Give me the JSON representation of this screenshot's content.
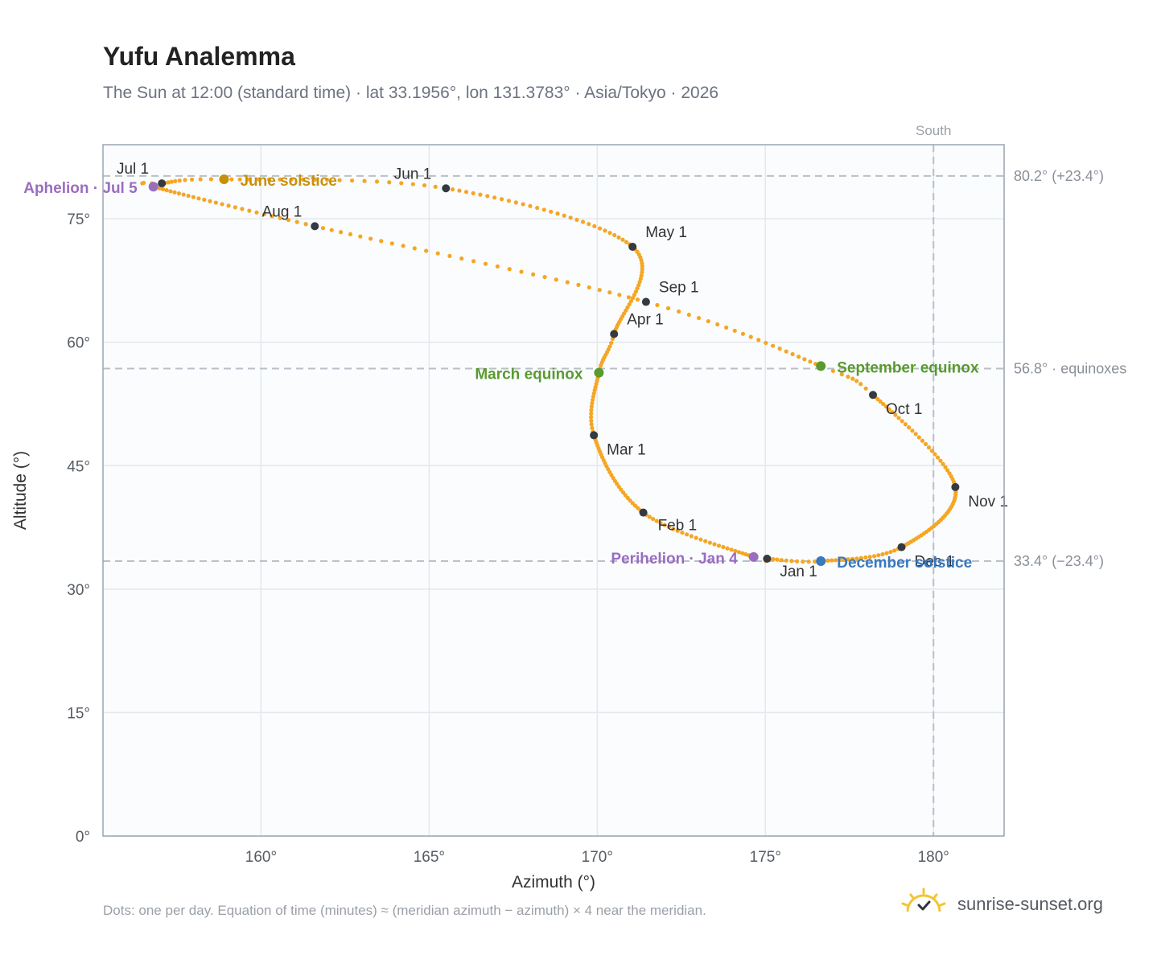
{
  "title": "Yufu Analemma",
  "subtitle": "The Sun at 12:00 (standard time) · lat 33.1956°, lon 131.3783° · Asia/Tokyo · 2026",
  "footnote": "Dots: one per day. Equation of time (minutes) ≈ (meridian azimuth − azimuth) × 4 near the meridian.",
  "brand": "sunrise-sunset.org",
  "colors": {
    "curve": "#f5a623",
    "month_dot": "#343a40",
    "solstice_june": "#c8900a",
    "equinox": "#5a9a2e",
    "solstice_december": "#3a78c0",
    "apsis": "#9a6dbf",
    "ref_line": "#b8c0c8",
    "axis_frame": "#9aa5b4",
    "grid": "#e4e8ec",
    "plot_bg": "#fafcfe"
  },
  "chart_data": {
    "type": "scatter",
    "title": "Yufu Analemma",
    "xlabel": "Azimuth (°)",
    "ylabel": "Altitude (°)",
    "xlim": [
      155.3,
      182.1
    ],
    "ylim": [
      0,
      84
    ],
    "xticks": [
      160,
      165,
      170,
      175,
      180
    ],
    "xtick_labels": [
      "160°",
      "165°",
      "170°",
      "175°",
      "180°"
    ],
    "yticks": [
      0,
      15,
      30,
      45,
      60,
      75
    ],
    "ytick_labels": [
      "0°",
      "15°",
      "30°",
      "45°",
      "60°",
      "75°"
    ],
    "grid": true,
    "south_azimuth": 180,
    "south_label": "South",
    "reference_lines": [
      {
        "altitude": 80.2,
        "label": "80.2° (+23.4°)"
      },
      {
        "altitude": 56.8,
        "label": "56.8° · equinoxes"
      },
      {
        "altitude": 33.4,
        "label": "33.4° (−23.4°)"
      }
    ],
    "anchors": [
      {
        "doy": 1,
        "azimuth": 175.05,
        "altitude": 33.7
      },
      {
        "doy": 4,
        "azimuth": 174.65,
        "altitude": 33.9
      },
      {
        "doy": 32,
        "azimuth": 171.37,
        "altitude": 39.3
      },
      {
        "doy": 60,
        "azimuth": 169.9,
        "altitude": 48.7
      },
      {
        "doy": 79,
        "azimuth": 170.05,
        "altitude": 56.3
      },
      {
        "doy": 91,
        "azimuth": 170.5,
        "altitude": 61.0
      },
      {
        "doy": 121,
        "azimuth": 171.05,
        "altitude": 71.6
      },
      {
        "doy": 152,
        "azimuth": 165.5,
        "altitude": 78.7
      },
      {
        "doy": 172,
        "azimuth": 158.9,
        "altitude": 79.8
      },
      {
        "doy": 182,
        "azimuth": 157.05,
        "altitude": 79.3
      },
      {
        "doy": 186,
        "azimuth": 156.8,
        "altitude": 78.9
      },
      {
        "doy": 213,
        "azimuth": 161.6,
        "altitude": 74.1
      },
      {
        "doy": 244,
        "azimuth": 171.45,
        "altitude": 64.9
      },
      {
        "doy": 266,
        "azimuth": 176.65,
        "altitude": 57.1
      },
      {
        "doy": 274,
        "azimuth": 178.2,
        "altitude": 53.6
      },
      {
        "doy": 305,
        "azimuth": 180.65,
        "altitude": 42.4
      },
      {
        "doy": 335,
        "azimuth": 179.05,
        "altitude": 35.1
      },
      {
        "doy": 355,
        "azimuth": 176.65,
        "altitude": 33.4
      },
      {
        "doy": 366,
        "azimuth": 175.05,
        "altitude": 33.7
      }
    ],
    "month_markers": [
      {
        "label": "Jan 1",
        "azimuth": 175.05,
        "altitude": 33.7,
        "anchor": "start",
        "dx": 16,
        "dy": 22
      },
      {
        "label": "Feb 1",
        "azimuth": 171.37,
        "altitude": 39.3,
        "anchor": "start",
        "dx": 18,
        "dy": 22
      },
      {
        "label": "Mar 1",
        "azimuth": 169.9,
        "altitude": 48.7,
        "anchor": "start",
        "dx": 16,
        "dy": 24
      },
      {
        "label": "Apr 1",
        "azimuth": 170.5,
        "altitude": 61.0,
        "anchor": "start",
        "dx": 16,
        "dy": -12
      },
      {
        "label": "May 1",
        "azimuth": 171.05,
        "altitude": 71.6,
        "anchor": "start",
        "dx": 16,
        "dy": -12
      },
      {
        "label": "Jun 1",
        "azimuth": 165.5,
        "altitude": 78.7,
        "anchor": "end",
        "dx": -18,
        "dy": -12
      },
      {
        "label": "Jul 1",
        "azimuth": 157.05,
        "altitude": 79.3,
        "anchor": "end",
        "dx": -16,
        "dy": -12
      },
      {
        "label": "Aug 1",
        "azimuth": 161.6,
        "altitude": 74.1,
        "anchor": "end",
        "dx": -16,
        "dy": -12
      },
      {
        "label": "Sep 1",
        "azimuth": 171.45,
        "altitude": 64.9,
        "anchor": "start",
        "dx": 16,
        "dy": -12
      },
      {
        "label": "Oct 1",
        "azimuth": 178.2,
        "altitude": 53.6,
        "anchor": "start",
        "dx": 16,
        "dy": 24
      },
      {
        "label": "Nov 1",
        "azimuth": 180.65,
        "altitude": 42.4,
        "anchor": "start",
        "dx": 16,
        "dy": 24
      },
      {
        "label": "Dec 1",
        "azimuth": 179.05,
        "altitude": 35.1,
        "anchor": "start",
        "dx": 16,
        "dy": 24
      }
    ],
    "events": [
      {
        "label": "June solstice",
        "azimuth": 158.9,
        "altitude": 79.8,
        "color": "#c8900a",
        "anchor": "start",
        "dx": 20,
        "dy": 8
      },
      {
        "label": "March equinox",
        "azimuth": 170.05,
        "altitude": 56.3,
        "color": "#5a9a2e",
        "anchor": "end",
        "dx": -20,
        "dy": 8
      },
      {
        "label": "September equinox",
        "azimuth": 176.65,
        "altitude": 57.1,
        "color": "#5a9a2e",
        "anchor": "start",
        "dx": 20,
        "dy": 8
      },
      {
        "label": "December solstice",
        "azimuth": 176.65,
        "altitude": 33.4,
        "color": "#3a78c0",
        "anchor": "start",
        "dx": 20,
        "dy": 8
      },
      {
        "label": "Perihelion · Jan 4",
        "azimuth": 174.65,
        "altitude": 33.9,
        "color": "#9a6dbf",
        "anchor": "end",
        "dx": -20,
        "dy": 8
      },
      {
        "label": "Aphelion · Jul 5",
        "azimuth": 156.8,
        "altitude": 78.9,
        "color": "#9a6dbf",
        "anchor": "end",
        "dx": -20,
        "dy": 8
      }
    ]
  }
}
